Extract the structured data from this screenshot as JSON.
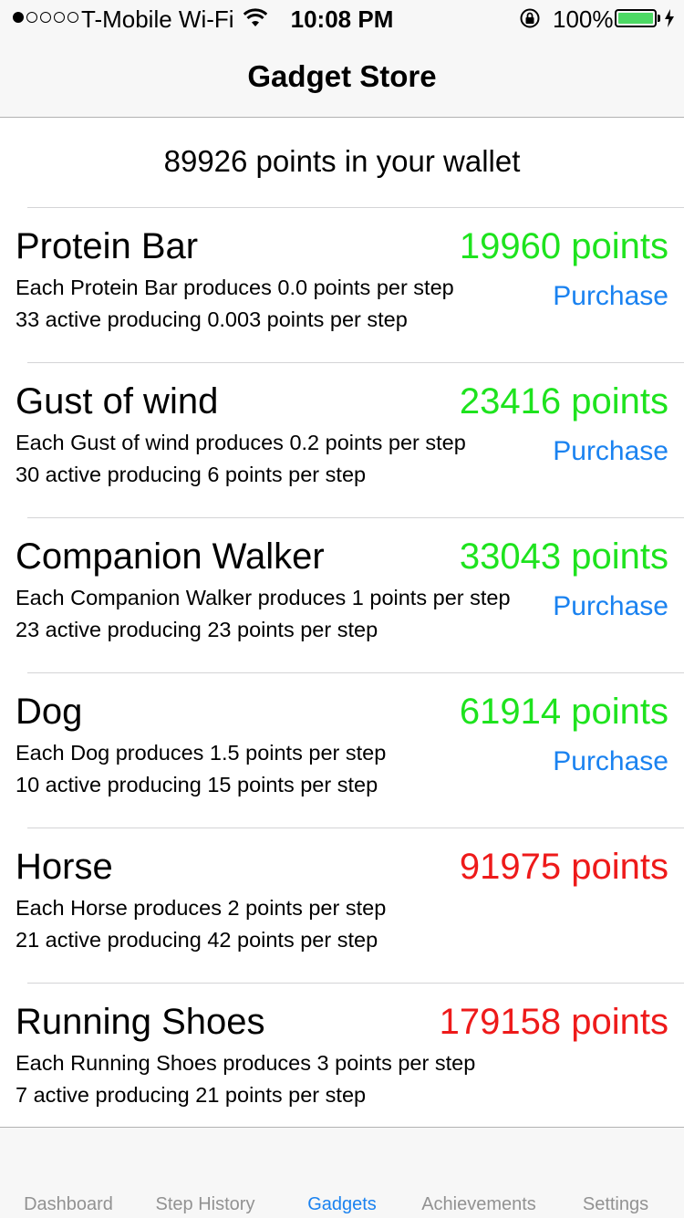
{
  "status_bar": {
    "carrier": "T-Mobile Wi-Fi",
    "time": "10:08 PM",
    "battery_percent": "100%",
    "signal_bars_filled": 1,
    "signal_bars_total": 5,
    "battery_level": 1.0,
    "battery_color": "#4cd964",
    "icons": [
      "wifi-icon",
      "rotation-lock-icon",
      "battery-icon",
      "charging-bolt-icon"
    ]
  },
  "nav": {
    "title": "Gadget Store"
  },
  "wallet": {
    "text": "89926 points in your wallet"
  },
  "colors": {
    "affordable": "#1ee31e",
    "unaffordable": "#ee1a1a",
    "link": "#1a82f0",
    "tab_inactive": "#929292"
  },
  "gadgets": [
    {
      "name": "Protein Bar",
      "price": "19960 points",
      "affordable": true,
      "each_line": "Each Protein Bar produces 0.0 points per step",
      "active_line": "33 active producing 0.003 points per step",
      "action": "Purchase"
    },
    {
      "name": "Gust of wind",
      "price": "23416 points",
      "affordable": true,
      "each_line": "Each Gust of wind produces 0.2 points per step",
      "active_line": "30 active producing 6 points per step",
      "action": "Purchase"
    },
    {
      "name": "Companion Walker",
      "price": "33043 points",
      "affordable": true,
      "each_line": "Each Companion Walker produces 1 points per step",
      "active_line": "23 active producing 23 points per step",
      "action": "Purchase"
    },
    {
      "name": "Dog",
      "price": "61914 points",
      "affordable": true,
      "each_line": "Each Dog produces 1.5 points per step",
      "active_line": "10 active producing 15 points per step",
      "action": "Purchase"
    },
    {
      "name": "Horse",
      "price": "91975 points",
      "affordable": false,
      "each_line": "Each Horse produces 2 points per step",
      "active_line": "21 active producing 42 points per step",
      "action": ""
    },
    {
      "name": "Running Shoes",
      "price": "179158 points",
      "affordable": false,
      "each_line": "Each Running Shoes produces 3 points per step",
      "active_line": "7 active producing 21 points per step",
      "action": ""
    }
  ],
  "tabs": [
    {
      "label": "Dashboard",
      "active": false
    },
    {
      "label": "Step History",
      "active": false
    },
    {
      "label": "Gadgets",
      "active": true
    },
    {
      "label": "Achievements",
      "active": false
    },
    {
      "label": "Settings",
      "active": false
    }
  ]
}
